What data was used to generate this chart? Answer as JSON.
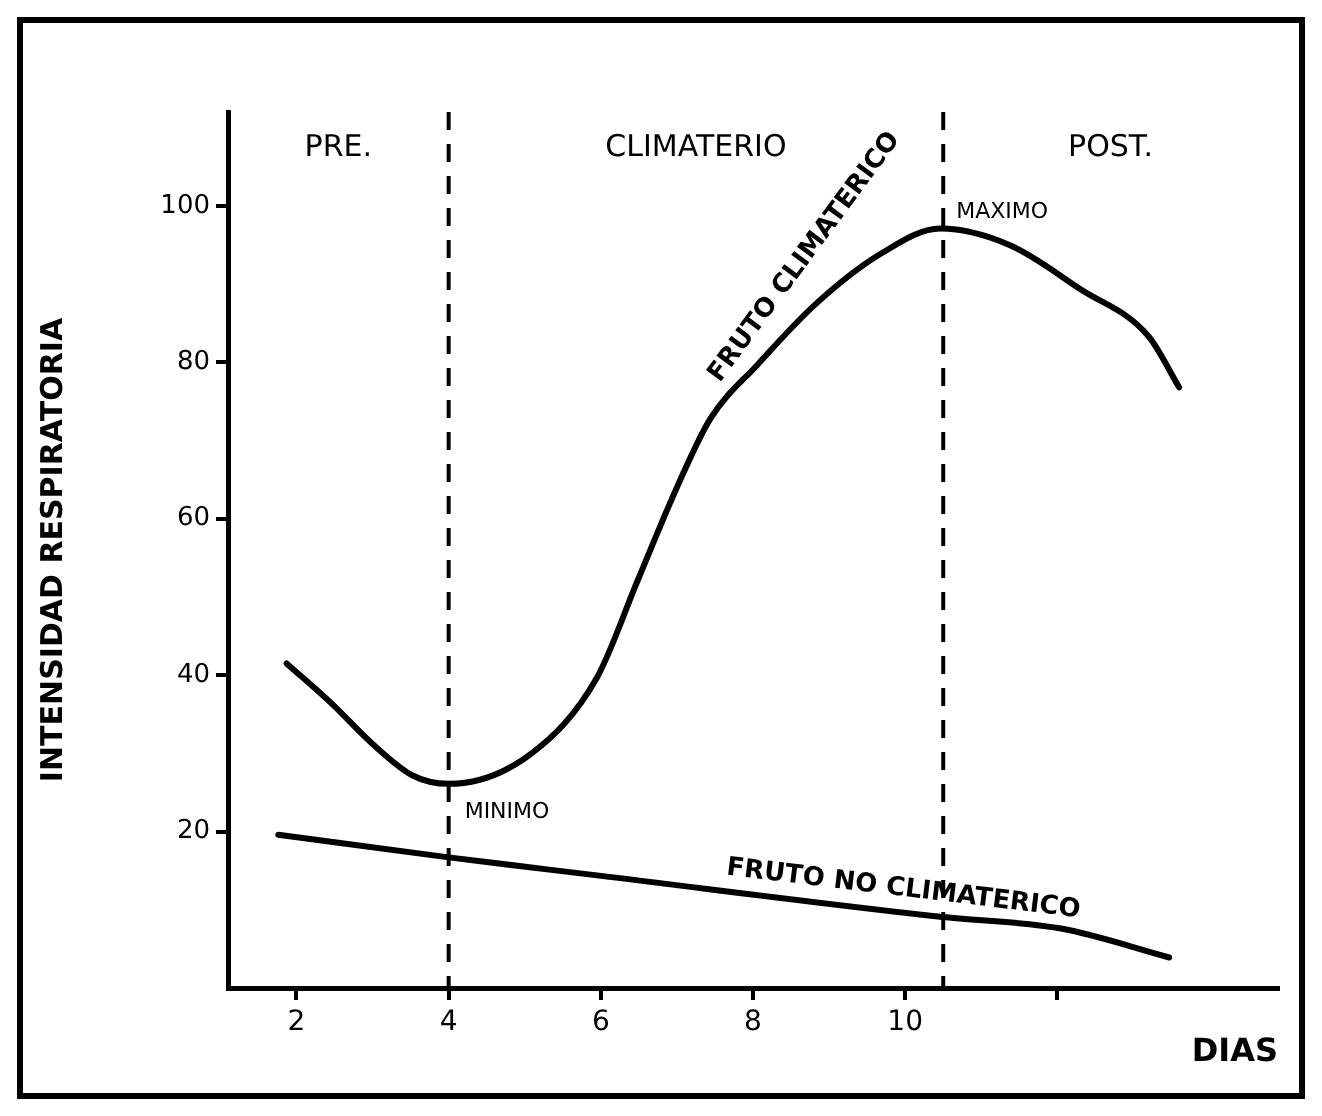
{
  "chart_data": {
    "type": "line",
    "xlabel": "DIAS",
    "ylabel": "INTENSIDAD RESPIRATORIA",
    "xlim": [
      1.1,
      14.9
    ],
    "ylim": [
      0,
      112
    ],
    "xticks": [
      2,
      4,
      6,
      8,
      10,
      {
        "value": 12,
        "label": null
      }
    ],
    "yticks": [
      20,
      40,
      60,
      80,
      100
    ],
    "grid": false,
    "legend": false,
    "marker": "none",
    "line_style": "solid",
    "series": [
      {
        "name": "FRUTO CLIMATERICO",
        "color": "#000000",
        "x": [
          1.87,
          2.47,
          2.99,
          3.52,
          4.0,
          5.09,
          5.95,
          6.48,
          7.0,
          7.44,
          8.05,
          8.83,
          9.7,
          10.46,
          11.37,
          12.31,
          13.2,
          13.6
        ],
        "values": [
          41.5,
          36.3,
          31.3,
          27.2,
          26.1,
          30,
          39.7,
          52,
          64,
          72.8,
          79.6,
          87.5,
          94,
          97.1,
          95,
          89.3,
          83.3,
          76.8
        ]
      },
      {
        "name": "FRUTO NO CLIMATERICO",
        "color": "#000000",
        "x": [
          1.76,
          4.0,
          5.95,
          10.46,
          12.05,
          13.47
        ],
        "values": [
          19.6,
          16.7,
          14.4,
          9.1,
          7.6,
          3.9
        ]
      }
    ],
    "ref_lines": [
      {
        "axis": "x",
        "value": 4,
        "color": "#000000",
        "line_style": "dashed"
      },
      {
        "axis": "x",
        "value": 10.5,
        "color": "#000000",
        "line_style": "dashed"
      }
    ],
    "annotations": [
      "PRE.",
      "CLIMATERIO",
      "POST.",
      {
        "text": "MINIMO",
        "x": 4.0,
        "y": 26.1
      },
      {
        "text": "MAXIMO",
        "x": 10.46,
        "y": 97.1
      }
    ]
  }
}
